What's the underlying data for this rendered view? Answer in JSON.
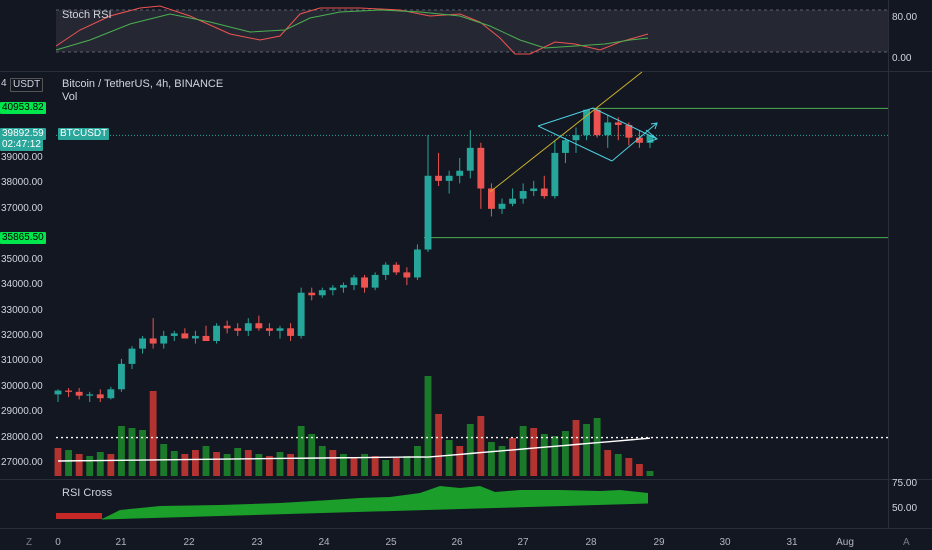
{
  "stoch_rsi": {
    "title": "Stoch RSI",
    "axis": [
      "80.00",
      "0.00"
    ]
  },
  "main": {
    "currency": "USDT",
    "currency_prefix": "4",
    "symbol_title": "Bitcoin / TetherUS, 4h, BINANCE",
    "volume_label": "Vol",
    "price_axis": [
      "39000.00",
      "38000.00",
      "37000.00",
      "35000.00",
      "34000.00",
      "33000.00",
      "32000.00",
      "31000.00",
      "30000.00",
      "29000.00",
      "28000.00",
      "27000.00"
    ],
    "level_high": "40953.82",
    "level_low": "35865.50",
    "last_price": "39892.59",
    "countdown": "02:47:12",
    "ticker_label": "BTCUSDT"
  },
  "rsi_cross": {
    "title": "RSI Cross",
    "axis": [
      "75.00",
      "50.00"
    ]
  },
  "time_axis": [
    "0",
    "21",
    "22",
    "23",
    "24",
    "25",
    "26",
    "27",
    "28",
    "29",
    "30",
    "31",
    "Aug"
  ],
  "footer": {
    "left_button": "Z",
    "right_button": "A"
  },
  "colors": {
    "up": "#26a69a",
    "down": "#ef5350",
    "level": "#4caf50",
    "trend": "#c8b02a",
    "pattern": "#4dd0e1",
    "vol_up": "#1b7a2a",
    "vol_down": "#b2332f",
    "last_price_bg": "#2aa69a",
    "level_bg": "#00e64d"
  },
  "chart_data": {
    "type": "candlestick",
    "x": [
      "0",
      "21",
      "22",
      "23",
      "24",
      "25",
      "26",
      "27",
      "28",
      "29",
      "30",
      "31",
      "Aug"
    ],
    "candles_ohlc": [
      [
        29700,
        29900,
        29400,
        29850
      ],
      [
        29850,
        29950,
        29600,
        29800
      ],
      [
        29800,
        29950,
        29500,
        29650
      ],
      [
        29650,
        29800,
        29400,
        29700
      ],
      [
        29700,
        29900,
        29400,
        29550
      ],
      [
        29550,
        30000,
        29500,
        29900
      ],
      [
        29900,
        31100,
        29800,
        30900
      ],
      [
        30900,
        31600,
        30700,
        31500
      ],
      [
        31500,
        32000,
        31300,
        31900
      ],
      [
        31900,
        32700,
        31500,
        31700
      ],
      [
        31700,
        32200,
        31500,
        32000
      ],
      [
        32000,
        32200,
        31800,
        32100
      ],
      [
        32100,
        32300,
        31900,
        31900
      ],
      [
        31900,
        32200,
        31700,
        32000
      ],
      [
        32000,
        32400,
        31800,
        31800
      ],
      [
        31800,
        32500,
        31700,
        32400
      ],
      [
        32400,
        32600,
        32100,
        32300
      ],
      [
        32300,
        32500,
        32000,
        32200
      ],
      [
        32200,
        32700,
        32000,
        32500
      ],
      [
        32500,
        32800,
        32200,
        32300
      ],
      [
        32300,
        32500,
        32000,
        32200
      ],
      [
        32200,
        32400,
        31900,
        32300
      ],
      [
        32300,
        32500,
        31800,
        32000
      ],
      [
        32000,
        33900,
        31900,
        33700
      ],
      [
        33700,
        33900,
        33400,
        33600
      ],
      [
        33600,
        33900,
        33500,
        33800
      ],
      [
        33800,
        34000,
        33600,
        33900
      ],
      [
        33900,
        34100,
        33700,
        34000
      ],
      [
        34000,
        34400,
        33800,
        34300
      ],
      [
        34300,
        34400,
        33700,
        33900
      ],
      [
        33900,
        34500,
        33800,
        34400
      ],
      [
        34400,
        34900,
        34200,
        34800
      ],
      [
        34800,
        34900,
        34400,
        34500
      ],
      [
        34500,
        34700,
        34000,
        34300
      ],
      [
        34300,
        35600,
        34200,
        35400
      ],
      [
        35400,
        39900,
        35300,
        38300
      ],
      [
        38300,
        39200,
        37900,
        38100
      ],
      [
        38100,
        38500,
        37600,
        38300
      ],
      [
        38300,
        39000,
        38000,
        38500
      ],
      [
        38500,
        40100,
        38200,
        39400
      ],
      [
        39400,
        39600,
        37000,
        37800
      ],
      [
        37800,
        38000,
        36700,
        37000
      ],
      [
        37000,
        37400,
        36800,
        37200
      ],
      [
        37200,
        37800,
        37100,
        37400
      ],
      [
        37400,
        38000,
        37200,
        37700
      ],
      [
        37700,
        38100,
        37500,
        37800
      ],
      [
        37800,
        38300,
        37400,
        37500
      ],
      [
        37500,
        39700,
        37400,
        39200
      ],
      [
        39200,
        39800,
        38800,
        39700
      ],
      [
        39700,
        40200,
        39200,
        39900
      ],
      [
        39900,
        40900,
        39700,
        40900
      ],
      [
        40900,
        41000,
        39800,
        39900
      ],
      [
        39900,
        40700,
        39400,
        40400
      ],
      [
        40400,
        40600,
        39700,
        40300
      ],
      [
        40300,
        40400,
        39500,
        39800
      ],
      [
        39800,
        40100,
        39400,
        39600
      ],
      [
        39600,
        39900,
        39400,
        39893
      ]
    ],
    "volume_colors": [
      "down",
      "up",
      "down",
      "up",
      "up",
      "down",
      "up",
      "up",
      "up",
      "down",
      "up",
      "up",
      "down",
      "down",
      "up",
      "down",
      "up",
      "up",
      "down",
      "up",
      "down",
      "up",
      "down",
      "up",
      "up",
      "up",
      "down",
      "up",
      "down",
      "up",
      "down",
      "up",
      "down",
      "up",
      "up",
      "up",
      "down",
      "up",
      "down",
      "up",
      "down",
      "up",
      "up",
      "down",
      "up",
      "down",
      "up",
      "up",
      "up",
      "down",
      "up",
      "up",
      "down",
      "up",
      "down",
      "down",
      "up"
    ],
    "volume_rel": [
      0.28,
      0.26,
      0.22,
      0.2,
      0.24,
      0.22,
      0.5,
      0.48,
      0.46,
      0.85,
      0.32,
      0.25,
      0.22,
      0.26,
      0.3,
      0.24,
      0.22,
      0.28,
      0.26,
      0.22,
      0.2,
      0.24,
      0.22,
      0.5,
      0.42,
      0.3,
      0.26,
      0.22,
      0.18,
      0.22,
      0.2,
      0.16,
      0.18,
      0.2,
      0.3,
      1.0,
      0.62,
      0.36,
      0.3,
      0.52,
      0.6,
      0.34,
      0.3,
      0.38,
      0.5,
      0.48,
      0.42,
      0.4,
      0.45,
      0.56,
      0.52,
      0.58,
      0.26,
      0.22,
      0.18,
      0.12,
      0.05
    ],
    "horizontal_levels": [
      40953.82,
      35865.5
    ],
    "last_price": 39892.59,
    "indicators": [
      "Stoch RSI",
      "Vol",
      "RSI Cross"
    ]
  }
}
